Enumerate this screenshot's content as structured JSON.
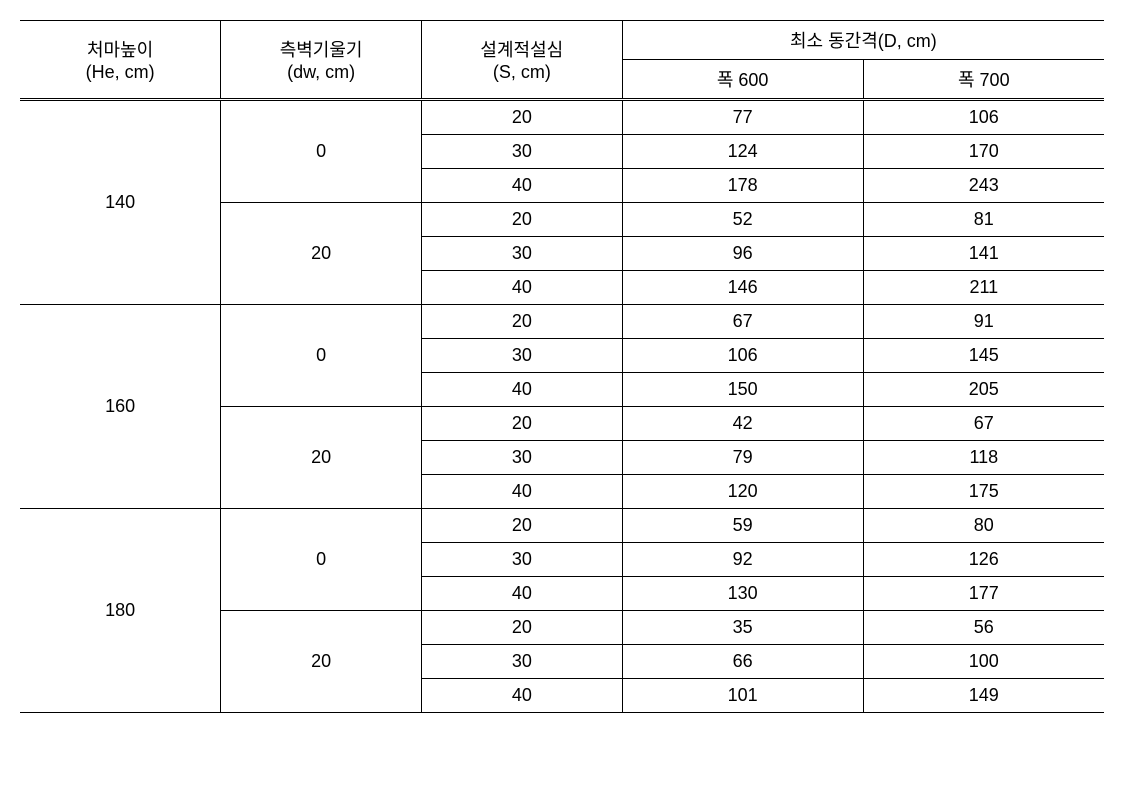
{
  "table": {
    "headers": {
      "he_line1": "처마높이",
      "he_line2": "(He, cm)",
      "dw_line1": "측벽기울기",
      "dw_line2": "(dw, cm)",
      "s_line1": "설계적설심",
      "s_line2": "(S, cm)",
      "d_title": "최소 동간격(D, cm)",
      "d_sub1": "폭 600",
      "d_sub2": "폭 700"
    },
    "groups": [
      {
        "he": "140",
        "subgroups": [
          {
            "dw": "0",
            "rows": [
              {
                "s": "20",
                "d600": "77",
                "d700": "106"
              },
              {
                "s": "30",
                "d600": "124",
                "d700": "170"
              },
              {
                "s": "40",
                "d600": "178",
                "d700": "243"
              }
            ]
          },
          {
            "dw": "20",
            "rows": [
              {
                "s": "20",
                "d600": "52",
                "d700": "81"
              },
              {
                "s": "30",
                "d600": "96",
                "d700": "141"
              },
              {
                "s": "40",
                "d600": "146",
                "d700": "211"
              }
            ]
          }
        ]
      },
      {
        "he": "160",
        "subgroups": [
          {
            "dw": "0",
            "rows": [
              {
                "s": "20",
                "d600": "67",
                "d700": "91"
              },
              {
                "s": "30",
                "d600": "106",
                "d700": "145"
              },
              {
                "s": "40",
                "d600": "150",
                "d700": "205"
              }
            ]
          },
          {
            "dw": "20",
            "rows": [
              {
                "s": "20",
                "d600": "42",
                "d700": "67"
              },
              {
                "s": "30",
                "d600": "79",
                "d700": "118"
              },
              {
                "s": "40",
                "d600": "120",
                "d700": "175"
              }
            ]
          }
        ]
      },
      {
        "he": "180",
        "subgroups": [
          {
            "dw": "0",
            "rows": [
              {
                "s": "20",
                "d600": "59",
                "d700": "80"
              },
              {
                "s": "30",
                "d600": "92",
                "d700": "126"
              },
              {
                "s": "40",
                "d600": "130",
                "d700": "177"
              }
            ]
          },
          {
            "dw": "20",
            "rows": [
              {
                "s": "20",
                "d600": "35",
                "d700": "56"
              },
              {
                "s": "30",
                "d600": "66",
                "d700": "100"
              },
              {
                "s": "40",
                "d600": "101",
                "d700": "149"
              }
            ]
          }
        ]
      }
    ]
  }
}
